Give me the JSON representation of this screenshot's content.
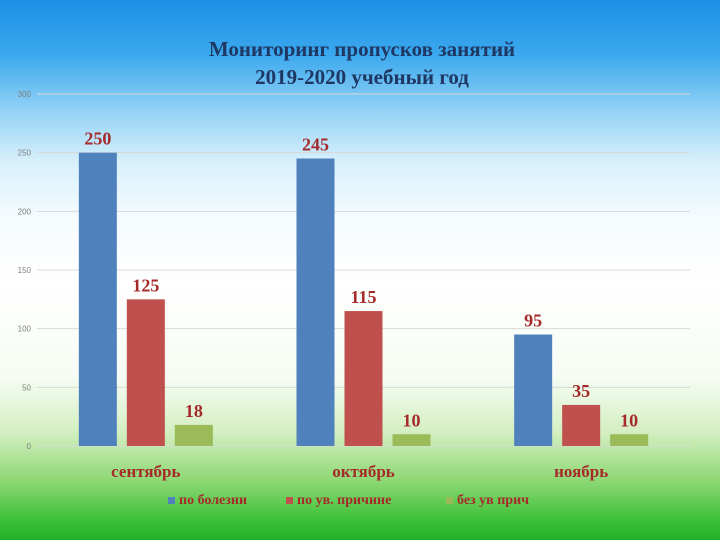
{
  "chart_data": {
    "type": "bar",
    "title_lines": [
      "Мониторинг пропусков занятий",
      "2019-2020 учебный год"
    ],
    "categories": [
      "сентябрь",
      "октябрь",
      "ноябрь"
    ],
    "series": [
      {
        "name": "по болезни",
        "values": [
          250,
          245,
          95
        ],
        "color": "#4f81bd"
      },
      {
        "name": "по ув. причине",
        "values": [
          125,
          115,
          35
        ],
        "color": "#c0504d"
      },
      {
        "name": "без ув прич",
        "values": [
          18,
          10,
          10
        ],
        "color": "#9bbb59"
      }
    ],
    "ylim": [
      0,
      300
    ],
    "yticks": [
      0,
      50,
      100,
      150,
      200,
      250,
      300
    ],
    "grid": true,
    "legend_position": "bottom",
    "colors": {
      "title": "#1f3763",
      "labels": "#a52a2a",
      "gridline": "#d9d9d9",
      "axis_tick": "#7f7f7f"
    }
  }
}
